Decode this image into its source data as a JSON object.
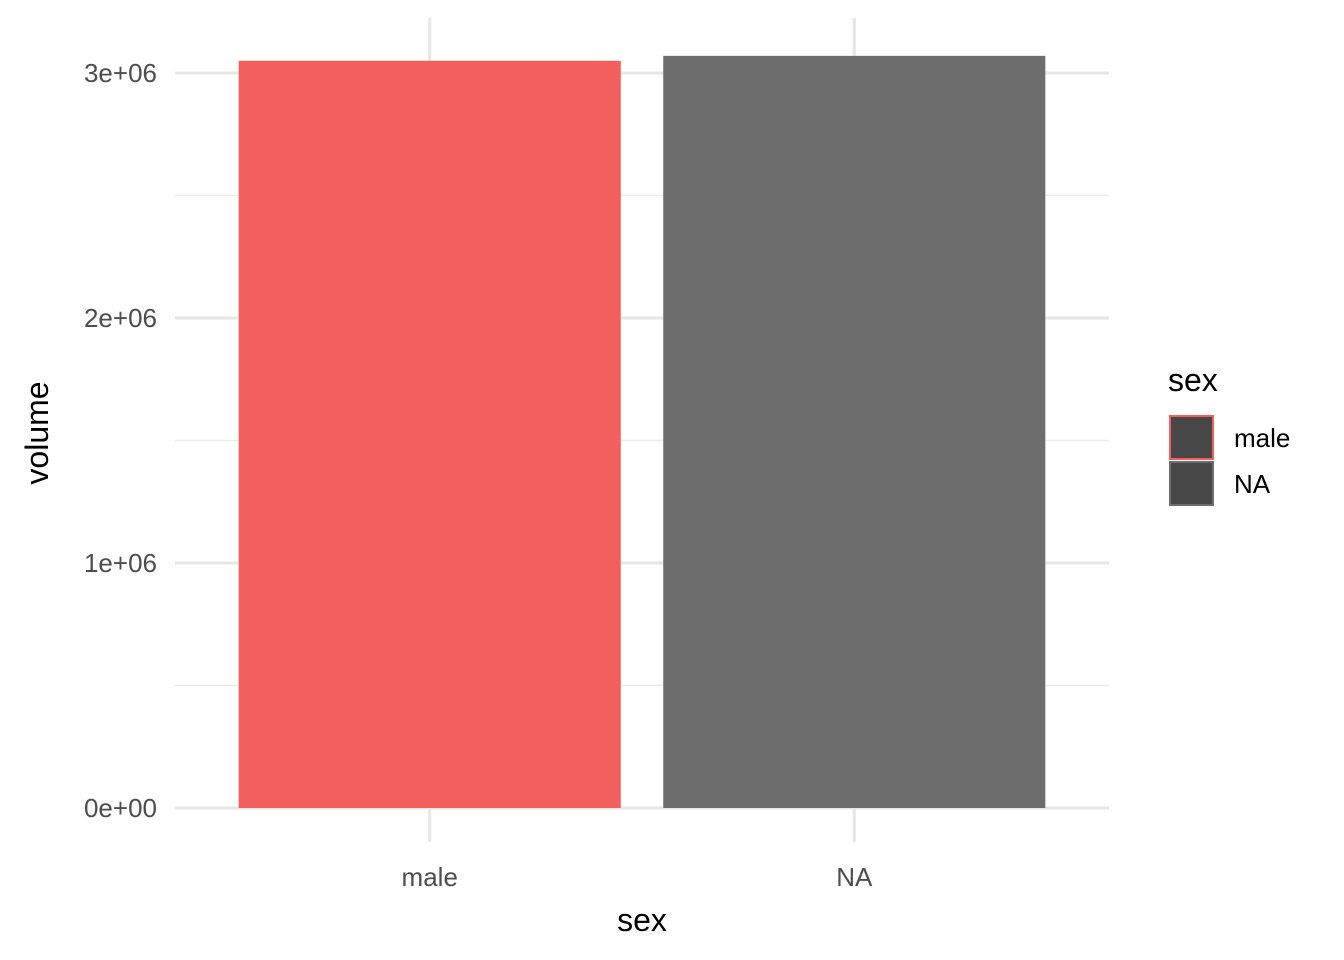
{
  "chart_data": {
    "type": "bar",
    "categories": [
      "male",
      "NA"
    ],
    "values": [
      3050000,
      3070000
    ],
    "bar_colors": [
      "#F2605D",
      "#6D6D6D"
    ],
    "xlabel": "sex",
    "ylabel": "volume",
    "ylim": [
      0,
      3200000
    ],
    "yticks": [
      0,
      1000000,
      2000000,
      3000000
    ],
    "ytick_labels": [
      "0e+00",
      "1e+06",
      "2e+06",
      "3e+06"
    ],
    "grid": true,
    "legend": {
      "title": "sex",
      "position": "right",
      "items": [
        {
          "label": "male",
          "fill": "#474747",
          "border": "#F2605D"
        },
        {
          "label": "NA",
          "fill": "#474747",
          "border": "#6D6D6D"
        }
      ]
    }
  }
}
